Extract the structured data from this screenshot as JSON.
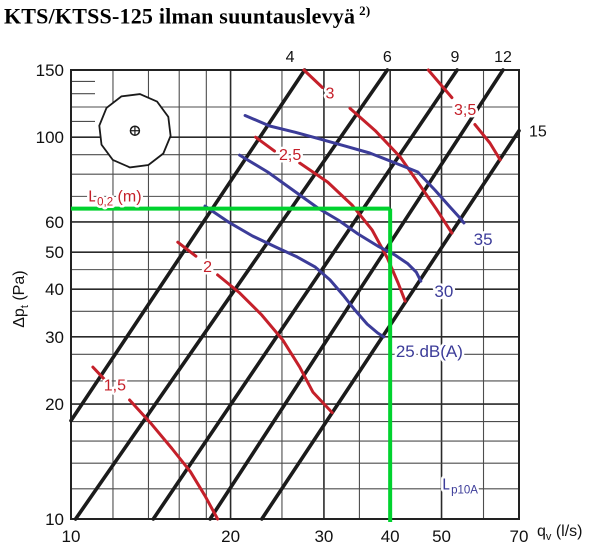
{
  "title": {
    "main": "KTS/KTSS-125 ilman suuntauslevyä",
    "sup": "2)"
  },
  "colors": {
    "position_line": "#1b1b1b",
    "throw_curve": "#c5202a",
    "sound_curve": "#3c3c99",
    "guide": "#00d22e",
    "grid_minor": "#4d4d4d",
    "grid_major": "#2a2a2a",
    "border": "#222222",
    "text": "#111111"
  },
  "axes": {
    "x": {
      "min": 10,
      "max": 70,
      "scale": "log",
      "unit_base": "q",
      "unit_sub": "v",
      "unit_rest": " (l/s)",
      "tick_labels": [
        10,
        20,
        30,
        40,
        50,
        70
      ],
      "grid_minor": [
        12,
        14,
        16,
        18,
        25,
        35,
        60
      ],
      "grid_major": [
        20,
        30,
        40,
        50
      ]
    },
    "y": {
      "min": 10,
      "max": 150,
      "scale": "log",
      "unit_base": "Δp",
      "unit_sub": "t",
      "unit_rest": " (Pa)",
      "tick_labels": [
        150,
        100,
        60,
        50,
        40,
        30,
        20,
        10
      ],
      "grid_minor": [
        12,
        14,
        16,
        18,
        23,
        27,
        35,
        45,
        70,
        80,
        90,
        120
      ],
      "grid_major": [
        20,
        30,
        40,
        50,
        60,
        100
      ],
      "stub_ticks": [
        110,
        130,
        140
      ]
    }
  },
  "annotations": {
    "top_line_labels": [
      {
        "label": "4",
        "q": 25.9
      },
      {
        "label": "6",
        "q": 39.5
      },
      {
        "label": "9",
        "q": 53.0
      },
      {
        "label": "12",
        "q": 65.3
      }
    ],
    "right_line_labels": [
      {
        "label": "15",
        "p": 104
      }
    ],
    "throw_axis_label": {
      "base": "L",
      "sub": "0,2",
      "rest": " (m)",
      "q": 12.1,
      "p": 70
    },
    "sound_axis_label": {
      "base": "L",
      "sub": "p10A",
      "rest": "",
      "q": 54.2,
      "p": 12.3
    }
  },
  "chart_data": {
    "type": "line",
    "x_scale": "log",
    "y_scale": "log",
    "xlim": [
      10,
      70
    ],
    "ylim": [
      10,
      150
    ],
    "xlabel": "qv (l/s)",
    "ylabel": "dpt (Pa)",
    "position_lines": [
      {
        "label": "4",
        "points": [
          [
            10,
            18.1
          ],
          [
            27.6,
            150
          ]
        ]
      },
      {
        "label": "6",
        "points": [
          [
            10.2,
            10
          ],
          [
            39.5,
            150
          ]
        ]
      },
      {
        "label": "9",
        "points": [
          [
            14.3,
            10
          ],
          [
            53.5,
            150
          ]
        ]
      },
      {
        "label": "12",
        "points": [
          [
            18.3,
            10
          ],
          [
            65.3,
            150
          ]
        ]
      },
      {
        "label": "15",
        "points": [
          [
            22.9,
            10
          ],
          [
            70,
            104
          ]
        ]
      }
    ],
    "throw_curves": [
      {
        "label": "1,5",
        "label_at": [
          12.1,
          22.4
        ],
        "dash": [
          [
            11.0,
            25.0
          ],
          [
            11.6,
            23.1
          ]
        ],
        "points": [
          [
            12.9,
            20.5
          ],
          [
            14.2,
            17.7
          ],
          [
            15.5,
            15.3
          ],
          [
            16.8,
            13.3
          ],
          [
            17.9,
            11.5
          ],
          [
            18.9,
            10
          ]
        ]
      },
      {
        "label": "2",
        "label_at": [
          18.1,
          45.7
        ],
        "dash": [
          [
            15.9,
            53.1
          ],
          [
            17.2,
            48.8
          ]
        ],
        "points": [
          [
            18.9,
            43.6
          ],
          [
            20.8,
            39.1
          ],
          [
            22.9,
            34.2
          ],
          [
            25.1,
            29.4
          ],
          [
            27.0,
            25.0
          ],
          [
            28.6,
            21.5
          ],
          [
            31.1,
            19.0
          ]
        ]
      },
      {
        "label": "2,5",
        "label_at": [
          25.9,
          89.8
        ],
        "dash": [
          [
            22.3,
            100
          ],
          [
            24.2,
            92
          ]
        ],
        "points": [
          [
            27.0,
            85.6
          ],
          [
            30.5,
            76.3
          ],
          [
            33.9,
            66.4
          ],
          [
            37.0,
            57.1
          ],
          [
            39.5,
            48.3
          ],
          [
            41.4,
            41.5
          ],
          [
            42.7,
            37.2
          ]
        ]
      },
      {
        "label": "3",
        "label_at": [
          30.8,
          130
        ],
        "dash": [
          [
            27.5,
            150
          ],
          [
            29.8,
            135
          ]
        ],
        "points": [
          [
            33.6,
            119
          ],
          [
            37.5,
            104
          ],
          [
            41.8,
            88.7
          ],
          [
            45.5,
            74.9
          ],
          [
            49.0,
            64.5
          ],
          [
            52.3,
            56.1
          ]
        ]
      },
      {
        "label": "3,5",
        "label_at": [
          55.4,
          118
        ],
        "dash": [
          [
            47.2,
            150
          ],
          [
            52.3,
            127
          ]
        ],
        "points": [
          [
            57.8,
            108
          ],
          [
            61.7,
            96.6
          ],
          [
            64.5,
            87.2
          ]
        ]
      }
    ],
    "sound_curves": [
      {
        "label": "25  dB(A)",
        "label_at": [
          41.0,
          27.4
        ],
        "anchor": "start",
        "points": [
          [
            17.9,
            66.0
          ],
          [
            19.8,
            60.0
          ],
          [
            22.0,
            55.1
          ],
          [
            24.3,
            51.6
          ],
          [
            26.7,
            48.6
          ],
          [
            28.9,
            45.7
          ],
          [
            30.8,
            42.3
          ],
          [
            32.6,
            38.6
          ],
          [
            34.3,
            35.3
          ],
          [
            36.2,
            32.4
          ],
          [
            37.9,
            30.7
          ],
          [
            38.9,
            30.0
          ]
        ]
      },
      {
        "label": "30",
        "label_at": [
          50.5,
          39.3
        ],
        "anchor": "middle",
        "points": [
          [
            20.8,
            89.8
          ],
          [
            23.5,
            81.1
          ],
          [
            26.5,
            71.9
          ],
          [
            29.2,
            65.3
          ],
          [
            31.9,
            60.7
          ],
          [
            34.8,
            55.8
          ],
          [
            37.9,
            51.9
          ],
          [
            40.9,
            49.1
          ],
          [
            43.2,
            46.6
          ],
          [
            44.8,
            44.3
          ],
          [
            45.7,
            42.0
          ]
        ]
      },
      {
        "label": "35",
        "label_at": [
          59.9,
          53.8
        ],
        "anchor": "middle",
        "points": [
          [
            21.3,
            114
          ],
          [
            23.7,
            107
          ],
          [
            26.5,
            103
          ],
          [
            29.5,
            98.9
          ],
          [
            32.9,
            94.8
          ],
          [
            36.6,
            90.9
          ],
          [
            40.9,
            85.6
          ],
          [
            45.1,
            81.1
          ],
          [
            48.6,
            72.7
          ],
          [
            51.9,
            65.6
          ],
          [
            54.2,
            61.4
          ],
          [
            55.1,
            59.6
          ]
        ]
      }
    ],
    "guide": {
      "flow": 40,
      "pressure": 65
    },
    "valve_symbol": {
      "q": 13.2,
      "p": 104
    }
  }
}
